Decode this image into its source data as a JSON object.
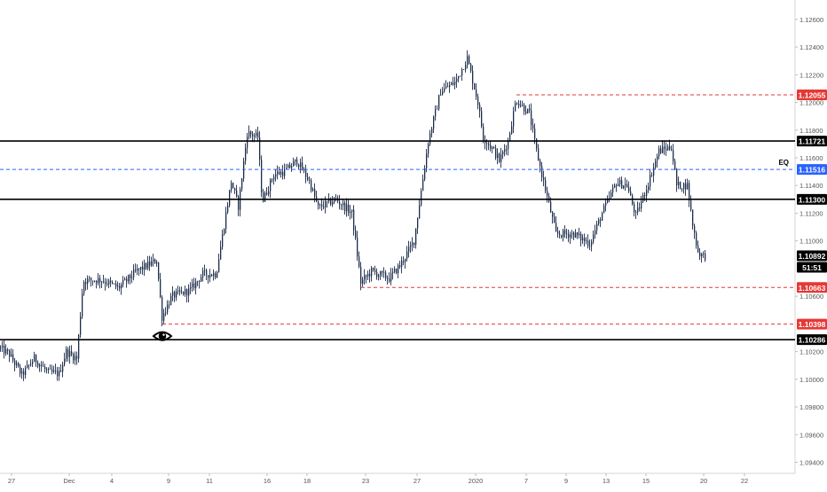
{
  "chart_data": {
    "type": "candlestick",
    "title": "",
    "xlabel": "",
    "ylabel": "",
    "ylim": [
      1.0932,
      1.1274
    ],
    "xlim_bars": [
      0,
      932
    ],
    "grid": false,
    "y_ticks": [
      "1.12600",
      "1.12400",
      "1.12200",
      "1.12000",
      "1.11800",
      "1.11600",
      "1.11400",
      "1.11200",
      "1.11000",
      "1.10600",
      "1.10200",
      "1.10000",
      "1.09800",
      "1.09600",
      "1.09400"
    ],
    "y_tick_values": [
      1.126,
      1.124,
      1.122,
      1.12,
      1.118,
      1.116,
      1.114,
      1.112,
      1.11,
      1.106,
      1.102,
      1.1,
      1.098,
      1.096,
      1.094
    ],
    "x_ticks": [
      {
        "label": "27",
        "bar": 13
      },
      {
        "label": "Dec",
        "bar": 78
      },
      {
        "label": "4",
        "bar": 126
      },
      {
        "label": "9",
        "bar": 190
      },
      {
        "label": "11",
        "bar": 236
      },
      {
        "label": "16",
        "bar": 301
      },
      {
        "label": "18",
        "bar": 346
      },
      {
        "label": "23",
        "bar": 412
      },
      {
        "label": "27",
        "bar": 470
      },
      {
        "label": "2020",
        "bar": 536
      },
      {
        "label": "7",
        "bar": 593
      },
      {
        "label": "9",
        "bar": 638
      },
      {
        "label": "13",
        "bar": 683
      },
      {
        "label": "15",
        "bar": 728
      },
      {
        "label": "20",
        "bar": 793
      },
      {
        "label": "22",
        "bar": 839
      }
    ],
    "path_anchors": [
      [
        0,
        1.1023
      ],
      [
        12,
        1.1018
      ],
      [
        26,
        1.1003
      ],
      [
        40,
        1.1015
      ],
      [
        55,
        1.1005
      ],
      [
        68,
        1.1004
      ],
      [
        76,
        1.102
      ],
      [
        88,
        1.1015
      ],
      [
        95,
        1.1071
      ],
      [
        115,
        1.1072
      ],
      [
        135,
        1.1066
      ],
      [
        155,
        1.1078
      ],
      [
        178,
        1.1086
      ],
      [
        184,
        1.1045
      ],
      [
        195,
        1.106
      ],
      [
        215,
        1.1064
      ],
      [
        230,
        1.1076
      ],
      [
        245,
        1.1076
      ],
      [
        262,
        1.1143
      ],
      [
        270,
        1.1125
      ],
      [
        280,
        1.1178
      ],
      [
        292,
        1.1175
      ],
      [
        297,
        1.1128
      ],
      [
        310,
        1.1148
      ],
      [
        322,
        1.115
      ],
      [
        336,
        1.1158
      ],
      [
        350,
        1.1143
      ],
      [
        360,
        1.1124
      ],
      [
        380,
        1.113
      ],
      [
        398,
        1.112
      ],
      [
        408,
        1.107
      ],
      [
        420,
        1.1078
      ],
      [
        440,
        1.1073
      ],
      [
        452,
        1.1082
      ],
      [
        468,
        1.11
      ],
      [
        484,
        1.1172
      ],
      [
        498,
        1.1208
      ],
      [
        515,
        1.1215
      ],
      [
        528,
        1.1232
      ],
      [
        540,
        1.12
      ],
      [
        546,
        1.1175
      ],
      [
        558,
        1.1165
      ],
      [
        564,
        1.1158
      ],
      [
        574,
        1.1172
      ],
      [
        583,
        1.1202
      ],
      [
        598,
        1.1192
      ],
      [
        605,
        1.1168
      ],
      [
        612,
        1.1148
      ],
      [
        628,
        1.1105
      ],
      [
        648,
        1.1105
      ],
      [
        666,
        1.1098
      ],
      [
        680,
        1.112
      ],
      [
        696,
        1.1142
      ],
      [
        708,
        1.114
      ],
      [
        718,
        1.1118
      ],
      [
        730,
        1.1138
      ],
      [
        744,
        1.1165
      ],
      [
        758,
        1.1168
      ],
      [
        764,
        1.114
      ],
      [
        776,
        1.114
      ],
      [
        782,
        1.1112
      ],
      [
        788,
        1.1092
      ],
      [
        794,
        1.1089
      ]
    ],
    "horizontal_levels": [
      {
        "value": 1.12055,
        "label": "1.12055",
        "style": "dashed",
        "color": "#e53935",
        "start_bar": 582,
        "box": "#e53935"
      },
      {
        "value": 1.11721,
        "label": "1.11721",
        "style": "solid",
        "color": "#000000",
        "start_bar": 0,
        "box": "#000000"
      },
      {
        "value": 1.11516,
        "label": "1.11516",
        "style": "dashed",
        "color": "#2962ff",
        "start_bar": 0,
        "box": "#2962ff",
        "annotation": "EQ"
      },
      {
        "value": 1.113,
        "label": "1.11300",
        "style": "solid",
        "color": "#000000",
        "start_bar": 0,
        "box": "#000000"
      },
      {
        "value": 1.10663,
        "label": "1.10663",
        "style": "dashed",
        "color": "#e53935",
        "start_bar": 407,
        "box": "#e53935"
      },
      {
        "value": 1.10398,
        "label": "1.10398",
        "style": "dashed",
        "color": "#e53935",
        "start_bar": 183,
        "box": "#e53935"
      },
      {
        "value": 1.10286,
        "label": "1.10286",
        "style": "solid",
        "color": "#000000",
        "start_bar": 0,
        "box": "#000000"
      }
    ],
    "current_price": {
      "value": 1.10892,
      "label": "1.10892",
      "countdown": "51:51"
    },
    "annotations": [
      {
        "type": "eye-icon",
        "bar": 183,
        "value": 1.10286
      }
    ],
    "colors": {
      "candle": "#1c2b4a",
      "axis_text": "#555555",
      "background": "#ffffff"
    }
  }
}
